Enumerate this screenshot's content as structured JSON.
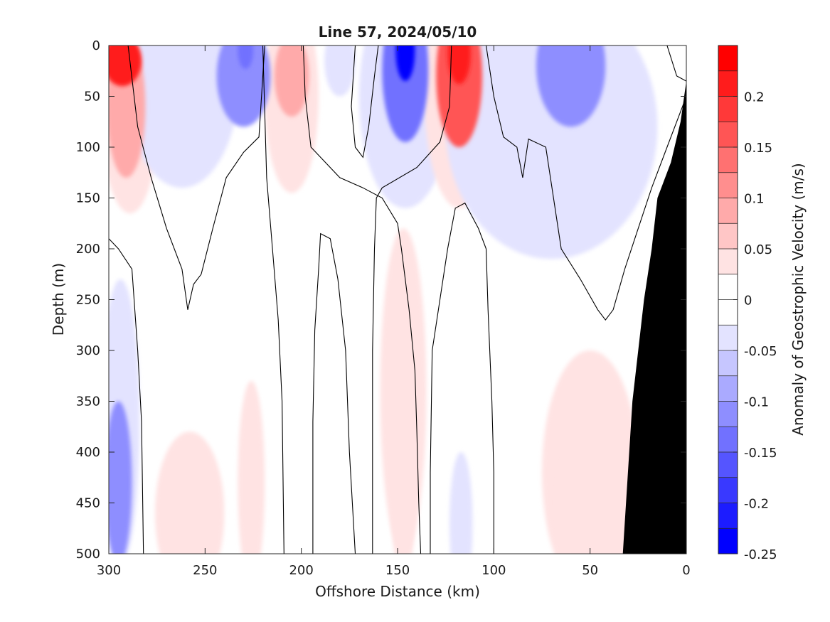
{
  "chart_data": {
    "type": "heatmap",
    "subtype": "filled-contour-section",
    "title": "Line 57, 2024/05/10",
    "xlabel": "Offshore Distance (km)",
    "ylabel": "Depth (m)",
    "xlim": [
      300,
      0
    ],
    "ylim": [
      0,
      500
    ],
    "x_reversed": true,
    "y_reversed": true,
    "x_ticks": [
      300,
      250,
      200,
      150,
      100,
      50,
      0
    ],
    "y_ticks": [
      0,
      50,
      100,
      150,
      200,
      250,
      300,
      350,
      400,
      450,
      500
    ],
    "colorbar": {
      "label": "Anomaly of Geostrophic Velocity (m/s)",
      "range": [
        -0.25,
        0.25
      ],
      "step": 0.025,
      "ticks": [
        0.2,
        0.15,
        0.1,
        0.05,
        0,
        -0.05,
        -0.1,
        -0.15,
        -0.2,
        -0.25
      ],
      "tick_labels": [
        "0.2",
        "0.15",
        "0.1",
        "0.05",
        "0",
        "-0.05",
        "-0.1",
        "-0.15",
        "-0.2",
        "-0.25"
      ],
      "colors": [
        "#0000ff",
        "#1c1cff",
        "#3939ff",
        "#5555ff",
        "#7171ff",
        "#8e8eff",
        "#aaaaff",
        "#c6c6ff",
        "#e3e3ff",
        "#ffffff",
        "#ffffff",
        "#ffe3e3",
        "#ffc6c6",
        "#ffaaaa",
        "#ff8e8e",
        "#ff7171",
        "#ff5555",
        "#ff3939",
        "#ff1c1c",
        "#ff0000"
      ]
    },
    "features": [
      {
        "kind": "anomaly",
        "value": 0.225,
        "x": 293,
        "y": 15,
        "rx": 10,
        "ry": 25
      },
      {
        "kind": "anomaly",
        "value": 0.1,
        "x": 291,
        "y": 60,
        "rx": 10,
        "ry": 70
      },
      {
        "kind": "anomaly",
        "value": 0.05,
        "x": 289,
        "y": 80,
        "rx": 14,
        "ry": 85
      },
      {
        "kind": "anomaly",
        "value": -0.05,
        "x": 262,
        "y": 30,
        "rx": 30,
        "ry": 110
      },
      {
        "kind": "anomaly",
        "value": -0.1,
        "x": 230,
        "y": 30,
        "rx": 14,
        "ry": 50
      },
      {
        "kind": "anomaly",
        "value": -0.15,
        "x": 229,
        "y": 5,
        "rx": 4,
        "ry": 18
      },
      {
        "kind": "anomaly",
        "value": 0.075,
        "x": 205,
        "y": 30,
        "rx": 9,
        "ry": 40
      },
      {
        "kind": "anomaly",
        "value": 0.05,
        "x": 205,
        "y": 50,
        "rx": 14,
        "ry": 95
      },
      {
        "kind": "anomaly",
        "value": -0.05,
        "x": 180,
        "y": 15,
        "rx": 8,
        "ry": 35
      },
      {
        "kind": "anomaly",
        "value": -0.05,
        "x": 146,
        "y": 50,
        "rx": 24,
        "ry": 110
      },
      {
        "kind": "anomaly",
        "value": -0.15,
        "x": 146,
        "y": 25,
        "rx": 12,
        "ry": 70
      },
      {
        "kind": "anomaly",
        "value": -0.25,
        "x": 146,
        "y": 5,
        "rx": 5,
        "ry": 30
      },
      {
        "kind": "anomaly",
        "value": 0.05,
        "x": 118,
        "y": 50,
        "rx": 18,
        "ry": 110
      },
      {
        "kind": "anomaly",
        "value": 0.15,
        "x": 118,
        "y": 30,
        "rx": 12,
        "ry": 70
      },
      {
        "kind": "anomaly",
        "value": 0.225,
        "x": 118,
        "y": 8,
        "rx": 6,
        "ry": 30
      },
      {
        "kind": "anomaly",
        "value": -0.05,
        "x": 70,
        "y": 80,
        "rx": 55,
        "ry": 130
      },
      {
        "kind": "anomaly",
        "value": -0.1,
        "x": 60,
        "y": 20,
        "rx": 18,
        "ry": 60
      },
      {
        "kind": "anomaly",
        "value": -0.05,
        "x": 294,
        "y": 370,
        "rx": 10,
        "ry": 140
      },
      {
        "kind": "anomaly",
        "value": -0.1,
        "x": 295,
        "y": 430,
        "rx": 7,
        "ry": 80
      },
      {
        "kind": "anomaly",
        "value": 0.025,
        "x": 147,
        "y": 340,
        "rx": 12,
        "ry": 160
      },
      {
        "kind": "anomaly",
        "value": 0.05,
        "x": 147,
        "y": 460,
        "rx": 6,
        "ry": 60
      },
      {
        "kind": "anomaly",
        "value": -0.025,
        "x": 121,
        "y": 400,
        "rx": 10,
        "ry": 120
      },
      {
        "kind": "anomaly",
        "value": -0.05,
        "x": 117,
        "y": 470,
        "rx": 6,
        "ry": 70
      },
      {
        "kind": "anomaly",
        "value": 0.025,
        "x": 50,
        "y": 420,
        "rx": 25,
        "ry": 120
      },
      {
        "kind": "anomaly",
        "value": 0.05,
        "x": 50,
        "y": 450,
        "rx": 17,
        "ry": 70
      },
      {
        "kind": "anomaly",
        "value": 0.025,
        "x": 258,
        "y": 460,
        "rx": 18,
        "ry": 80
      },
      {
        "kind": "anomaly",
        "value": 0.025,
        "x": 226,
        "y": 430,
        "rx": 7,
        "ry": 100
      }
    ],
    "zero_contours": [
      [
        [
          290,
          0
        ],
        [
          285,
          80
        ],
        [
          278,
          130
        ],
        [
          270,
          180
        ],
        [
          262,
          220
        ],
        [
          259,
          260
        ],
        [
          256,
          235
        ],
        [
          252,
          225
        ],
        [
          246,
          180
        ],
        [
          239,
          130
        ],
        [
          230,
          105
        ],
        [
          222,
          90
        ],
        [
          219,
          0
        ]
      ],
      [
        [
          300,
          190
        ],
        [
          295,
          200
        ],
        [
          288,
          220
        ],
        [
          285,
          300
        ],
        [
          283,
          370
        ],
        [
          282,
          500
        ]
      ],
      [
        [
          220,
          0
        ],
        [
          218,
          130
        ],
        [
          215,
          200
        ],
        [
          212,
          270
        ],
        [
          210,
          350
        ],
        [
          209,
          500
        ]
      ],
      [
        [
          199,
          0
        ],
        [
          198,
          50
        ],
        [
          195,
          100
        ],
        [
          180,
          130
        ],
        [
          168,
          140
        ],
        [
          158,
          150
        ],
        [
          150,
          175
        ],
        [
          148,
          200
        ],
        [
          144,
          260
        ],
        [
          141,
          320
        ],
        [
          140,
          380
        ],
        [
          139,
          450
        ],
        [
          138,
          500
        ]
      ],
      [
        [
          194,
          500
        ],
        [
          194,
          370
        ],
        [
          193,
          280
        ],
        [
          191,
          220
        ],
        [
          190,
          185
        ],
        [
          185,
          190
        ],
        [
          181,
          230
        ],
        [
          177,
          300
        ],
        [
          175,
          400
        ],
        [
          172,
          500
        ]
      ],
      [
        [
          172,
          0
        ],
        [
          174,
          60
        ],
        [
          172,
          100
        ],
        [
          168,
          110
        ],
        [
          165,
          80
        ],
        [
          162,
          30
        ],
        [
          160,
          0
        ]
      ],
      [
        [
          163,
          500
        ],
        [
          163,
          300
        ],
        [
          162,
          200
        ],
        [
          161,
          150
        ],
        [
          158,
          140
        ],
        [
          140,
          120
        ],
        [
          128,
          95
        ],
        [
          123,
          60
        ],
        [
          122,
          0
        ]
      ],
      [
        [
          133,
          500
        ],
        [
          133,
          420
        ],
        [
          132,
          300
        ],
        [
          124,
          200
        ],
        [
          120,
          160
        ],
        [
          115,
          155
        ],
        [
          108,
          180
        ],
        [
          104,
          200
        ],
        [
          103,
          260
        ],
        [
          101,
          350
        ],
        [
          100,
          420
        ],
        [
          100,
          500
        ]
      ],
      [
        [
          104,
          0
        ],
        [
          100,
          50
        ],
        [
          95,
          90
        ],
        [
          88,
          100
        ],
        [
          85,
          130
        ],
        [
          82,
          92
        ],
        [
          73,
          100
        ],
        [
          65,
          200
        ],
        [
          55,
          230
        ],
        [
          46,
          260
        ],
        [
          42,
          270
        ],
        [
          38,
          260
        ],
        [
          32,
          220
        ],
        [
          25,
          180
        ],
        [
          18,
          140
        ],
        [
          10,
          100
        ],
        [
          2,
          60
        ],
        [
          0,
          50
        ]
      ],
      [
        [
          10,
          0
        ],
        [
          5,
          30
        ],
        [
          0,
          35
        ]
      ]
    ],
    "terrain": [
      [
        33,
        500
      ],
      [
        28,
        350
      ],
      [
        22,
        250
      ],
      [
        18,
        200
      ],
      [
        15,
        150
      ],
      [
        8,
        115
      ],
      [
        3,
        75
      ],
      [
        0,
        35
      ],
      [
        0,
        500
      ]
    ]
  }
}
